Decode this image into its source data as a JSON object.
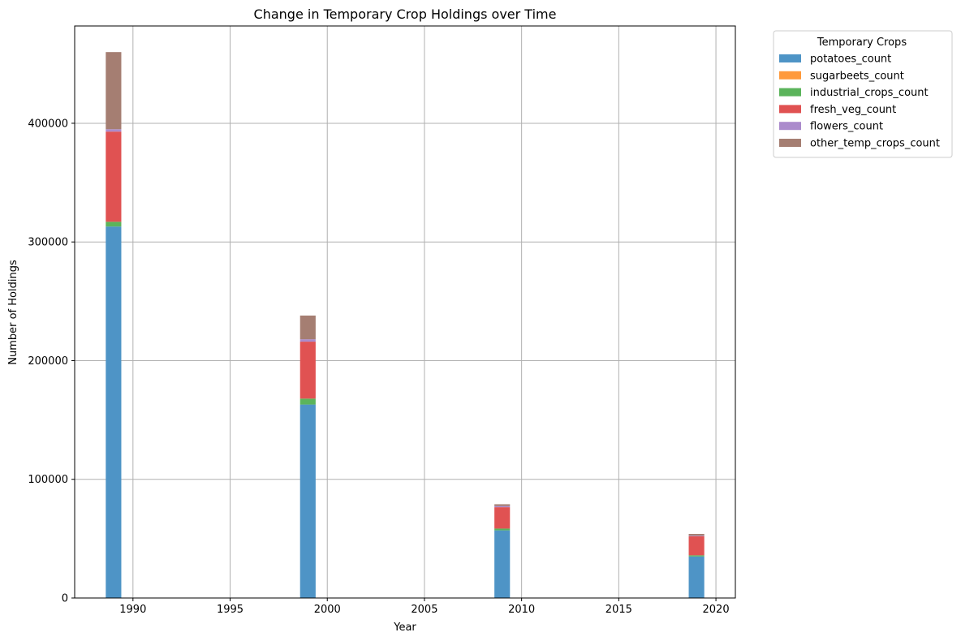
{
  "chart_data": {
    "type": "bar",
    "stacked": true,
    "title": "Change in Temporary Crop Holdings over Time",
    "xlabel": "Year",
    "ylabel": "Number of Holdings",
    "xlim": [
      1987,
      2021
    ],
    "ylim": [
      0,
      482000
    ],
    "xticks": [
      1990,
      1995,
      2000,
      2005,
      2010,
      2015,
      2020
    ],
    "yticks": [
      0,
      100000,
      200000,
      300000,
      400000
    ],
    "grid": true,
    "legend": {
      "title": "Temporary Crops",
      "placement": "outside-top-right"
    },
    "categories": [
      1989,
      1999,
      2009,
      2019
    ],
    "series": [
      {
        "name": "potatoes_count",
        "color": "#4e94c6",
        "values": [
          313000,
          163000,
          57000,
          35000
        ]
      },
      {
        "name": "sugarbeets_count",
        "color": "#ff9a3c",
        "values": [
          0,
          0,
          0,
          0
        ]
      },
      {
        "name": "industrial_crops_count",
        "color": "#5bb45b",
        "values": [
          4000,
          5000,
          1500,
          1000
        ]
      },
      {
        "name": "fresh_veg_count",
        "color": "#e05252",
        "values": [
          76000,
          48000,
          18000,
          16000
        ]
      },
      {
        "name": "flowers_count",
        "color": "#ab8bcc",
        "values": [
          2000,
          2000,
          1000,
          500
        ]
      },
      {
        "name": "other_temp_crops_count",
        "color": "#a57e72",
        "values": [
          65000,
          20000,
          1500,
          1500
        ]
      }
    ]
  }
}
